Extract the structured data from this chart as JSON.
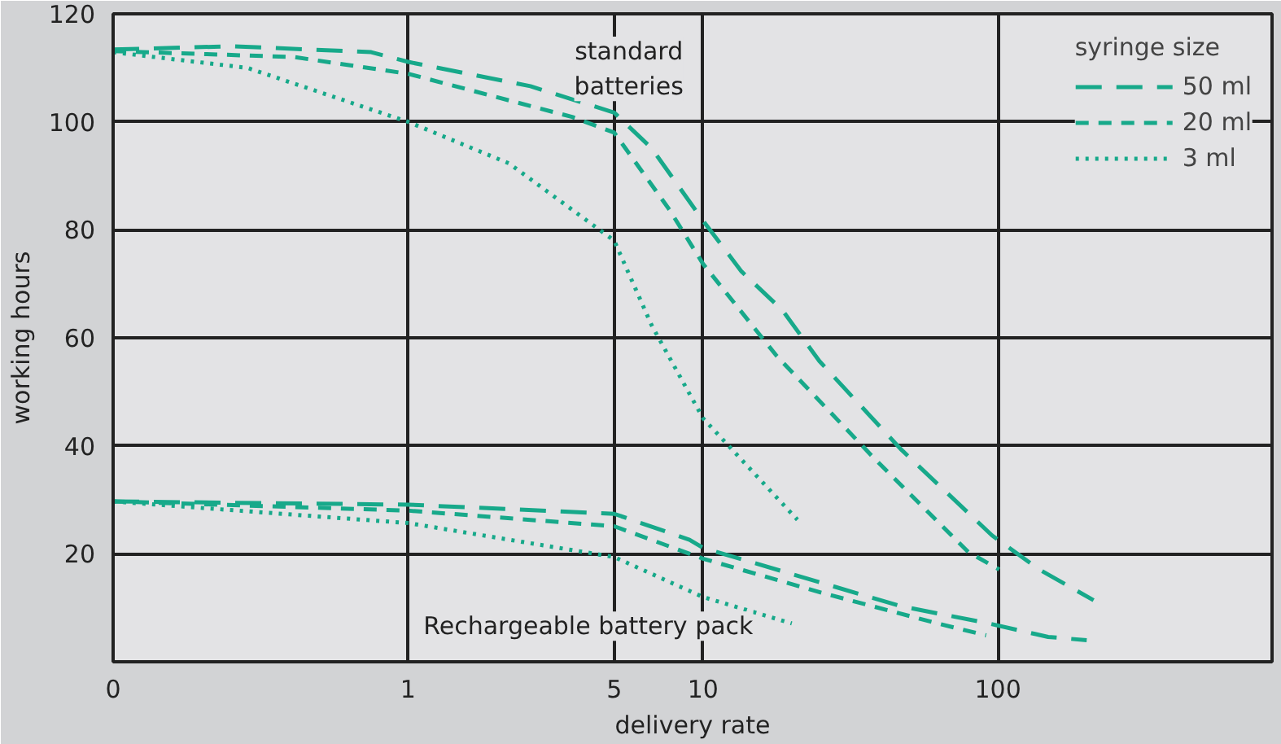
{
  "chart_data": {
    "type": "line",
    "xlabel": "delivery rate",
    "ylabel": "working hours",
    "legend_title": "syringe size",
    "legend": "top right",
    "grid": true,
    "log": "x",
    "xlim": [
      0.1,
      850
    ],
    "xticks": [
      {
        "value": 0.1,
        "label": "0"
      },
      1,
      5,
      10,
      100
    ],
    "ylim": [
      0,
      120
    ],
    "yticks": [
      20,
      40,
      60,
      80,
      100,
      120
    ],
    "annotations": [
      "standard\nbatteries",
      "Rechargeable battery pack"
    ],
    "series": [
      {
        "name": "50 ml",
        "color": "#17a98a",
        "line_style": "long_dashed",
        "x": [
          0.1,
          0.254,
          0.75,
          1,
          2.6,
          5,
          6.7,
          10,
          13.5,
          18.6,
          24.8,
          46.8,
          95.5,
          138,
          211
        ],
        "values": [
          113.4,
          114,
          112.9,
          111.1,
          106.6,
          101.7,
          95.1,
          81.7,
          72.3,
          65.1,
          55.7,
          39.4,
          23.4,
          17.1,
          11.4
        ]
      },
      {
        "name": "20 ml",
        "color": "#17a98a",
        "line_style": "dashed",
        "x": [
          0.1,
          0.41,
          1,
          3.6,
          5,
          7.7,
          10,
          17.8,
          38.5,
          79.4,
          101
        ],
        "values": [
          113.1,
          112,
          108.9,
          100.9,
          98,
          83.7,
          73.7,
          56.6,
          37.4,
          20.3,
          17.1
        ]
      },
      {
        "name": "3 ml",
        "color": "#17a98a",
        "line_style": "dotted",
        "x": [
          0.1,
          0.285,
          1,
          2.2,
          5,
          6.7,
          10,
          20.9
        ],
        "values": [
          112.9,
          110,
          100,
          92.3,
          78,
          62.3,
          45.1,
          26.3
        ]
      },
      {
        "color": "#17a98a",
        "line_style": "long_dashed",
        "x": [
          0.1,
          1,
          5,
          9,
          10,
          46.8,
          93.3,
          148,
          200
        ],
        "values": [
          29.7,
          29.1,
          27.4,
          22.6,
          21.1,
          10.3,
          7.1,
          4.6,
          4.0
        ]
      },
      {
        "color": "#17a98a",
        "line_style": "dashed",
        "x": [
          0.1,
          1,
          5,
          10,
          24.8,
          62.4,
          91.2
        ],
        "values": [
          29.7,
          28,
          25.1,
          19.1,
          12.9,
          7.1,
          4.9
        ]
      },
      {
        "color": "#17a98a",
        "line_style": "dotted",
        "x": [
          0.1,
          1,
          5,
          10,
          20
        ],
        "values": [
          29.7,
          25.7,
          19.4,
          12,
          7.1
        ]
      }
    ]
  }
}
